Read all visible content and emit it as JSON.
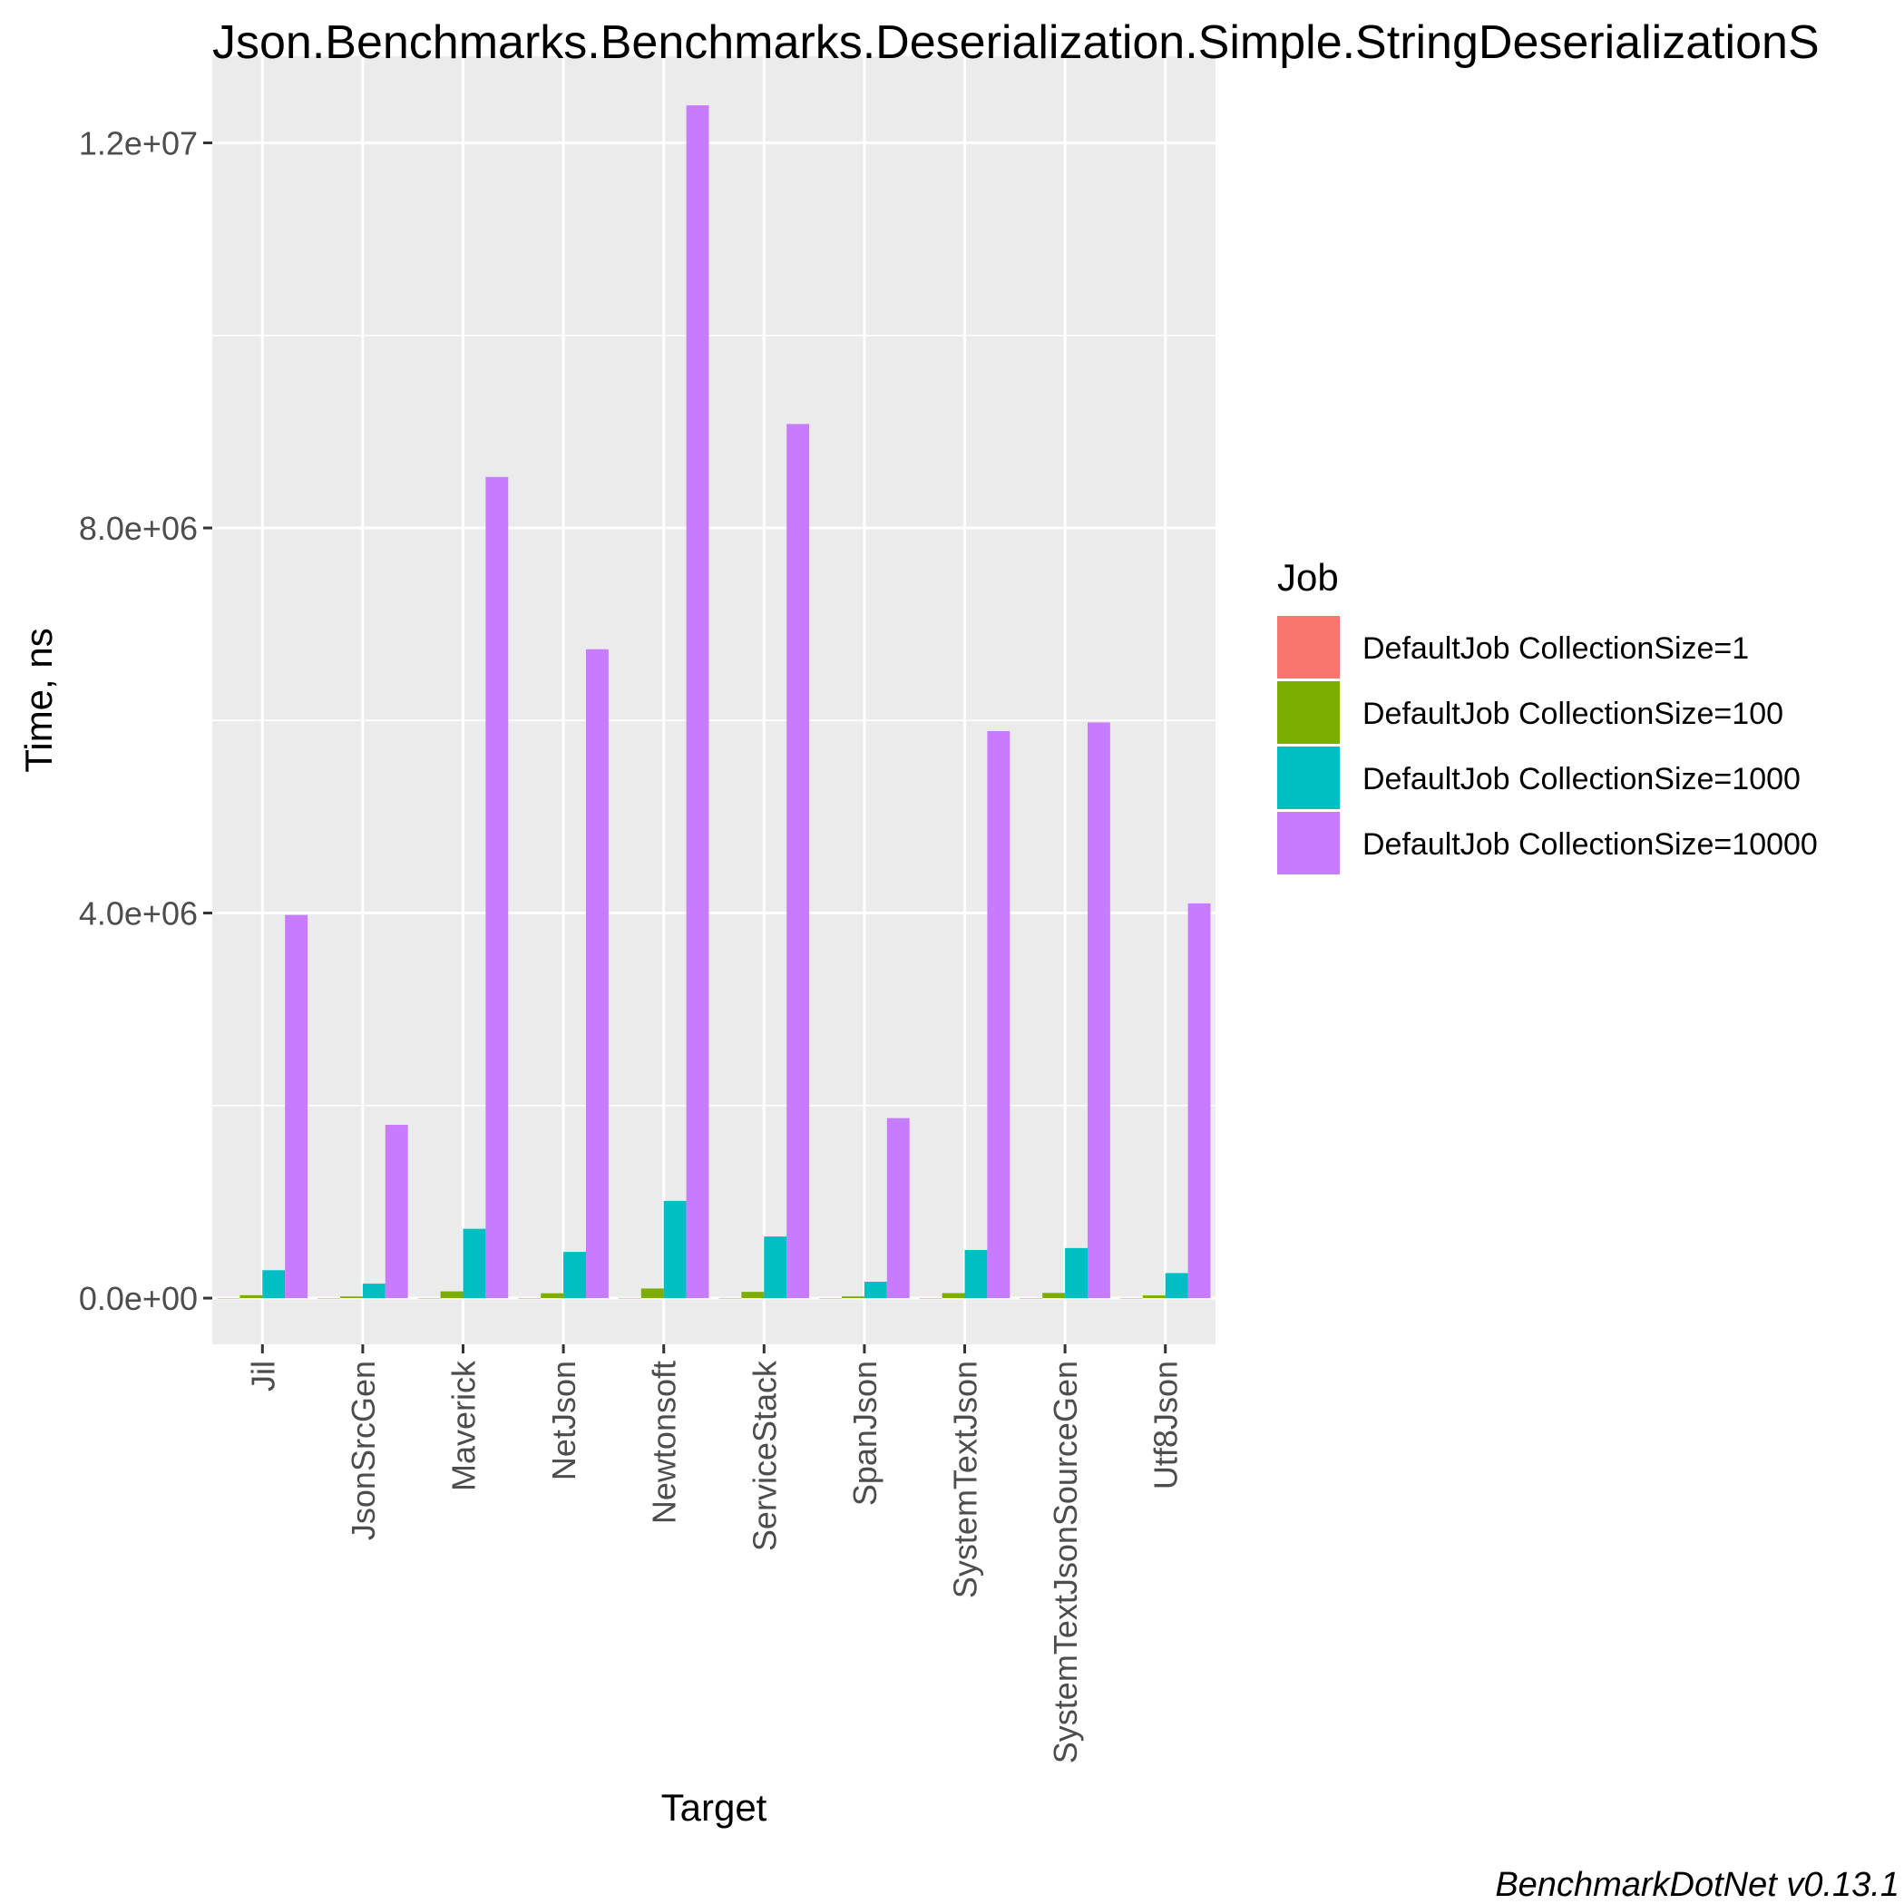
{
  "chart_data": {
    "type": "bar",
    "title": "Json.Benchmarks.Benchmarks.Deserialization.Simple.StringDeserializationS",
    "xlabel": "Target",
    "ylabel": "Time, ns",
    "caption": "BenchmarkDotNet v0.13.1",
    "ylim": [
      -480000,
      12900000
    ],
    "yticks": [
      0,
      4000000,
      8000000,
      12000000
    ],
    "ytick_labels": [
      "0.0e+00",
      "4.0e+06",
      "8.0e+06",
      "1.2e+07"
    ],
    "grid": true,
    "legend_position": "right",
    "legend_title": "Job",
    "categories": [
      "Jil",
      "JsonSrcGen",
      "Maverick",
      "NetJson",
      "Newtonsoft",
      "ServiceStack",
      "SpanJson",
      "SystemTextJson",
      "SystemTextJsonSourceGen",
      "Utf8Json"
    ],
    "series": [
      {
        "name": "DefaultJob CollectionSize=1",
        "color": "#F8766D",
        "values": [
          300,
          200,
          700,
          500,
          1000,
          700,
          200,
          500,
          500,
          300
        ]
      },
      {
        "name": "DefaultJob CollectionSize=100",
        "color": "#7CAE00",
        "values": [
          30000,
          17000,
          70000,
          50000,
          100000,
          65000,
          18000,
          52000,
          54000,
          28000
        ]
      },
      {
        "name": "DefaultJob CollectionSize=1000",
        "color": "#00BFC4",
        "values": [
          290000,
          150000,
          720000,
          480000,
          1010000,
          640000,
          170000,
          500000,
          520000,
          260000
        ]
      },
      {
        "name": "DefaultJob CollectionSize=10000",
        "color": "#C77CFF",
        "values": [
          3980000,
          1800000,
          8530000,
          6740000,
          12390000,
          9080000,
          1870000,
          5890000,
          5980000,
          4100000
        ]
      }
    ]
  }
}
